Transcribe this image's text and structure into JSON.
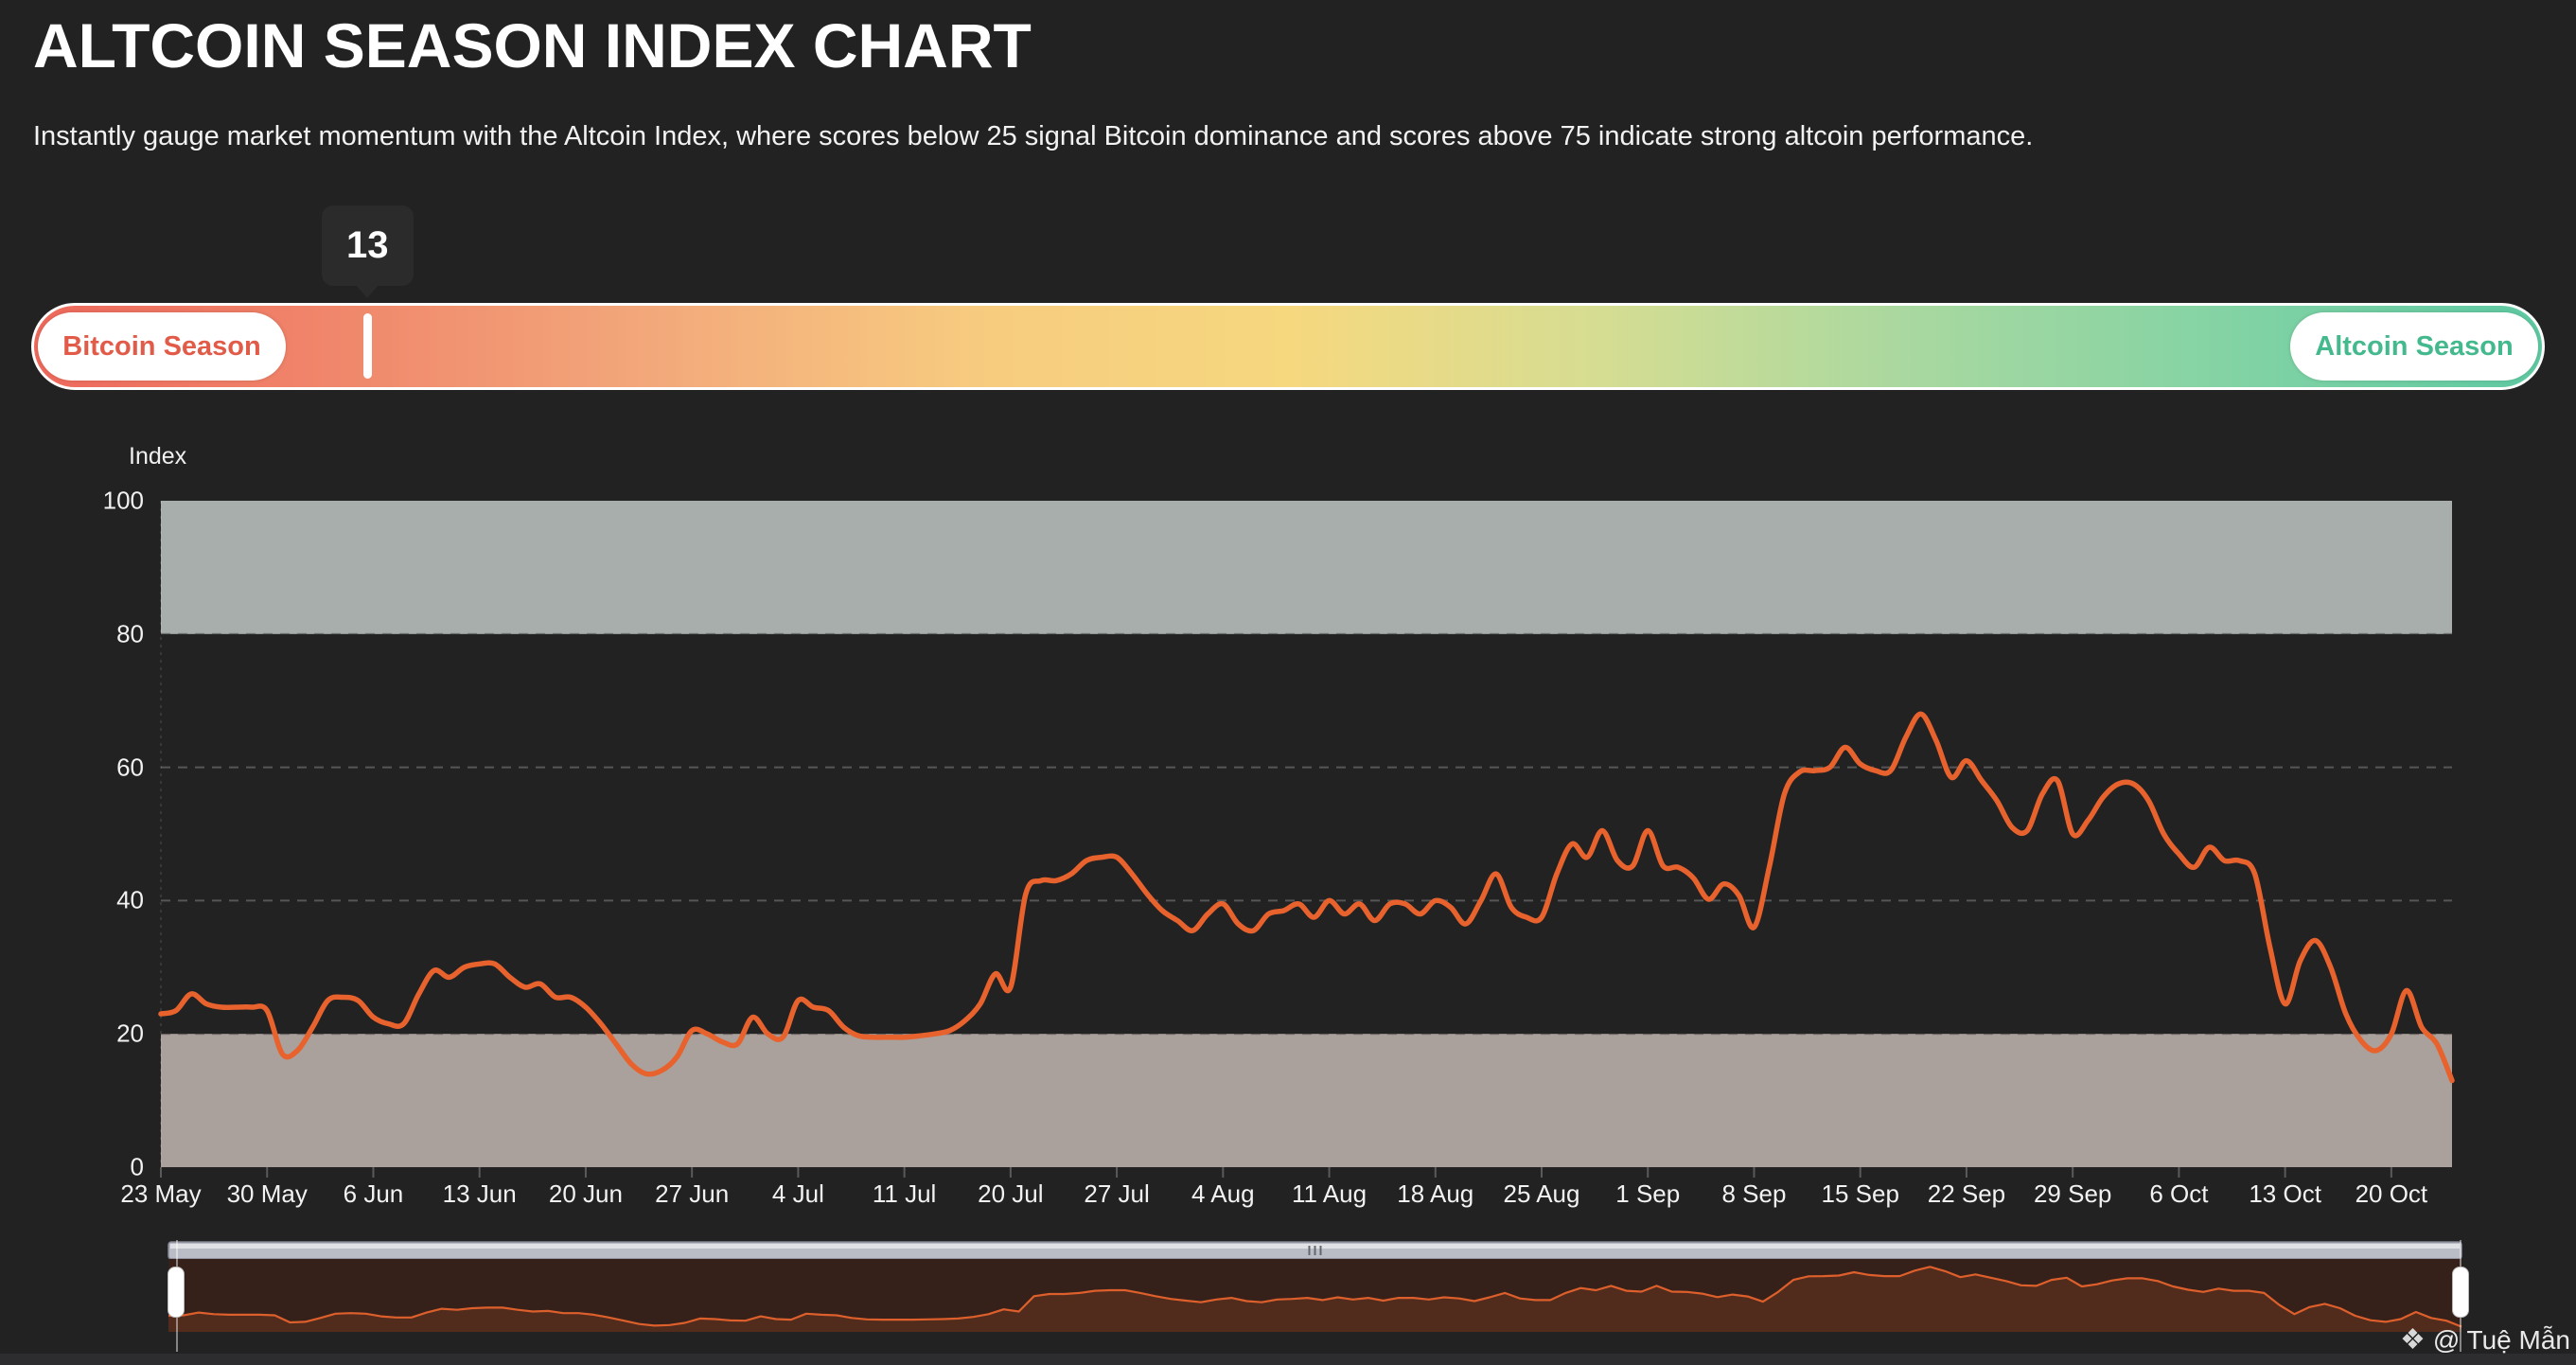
{
  "header": {
    "title": "ALTCOIN SEASON INDEX CHART",
    "subtitle": "Instantly gauge market momentum with the Altcoin Index, where scores below 25 signal Bitcoin dominance and scores above 75 indicate strong altcoin performance."
  },
  "season_gauge": {
    "current_value": "13",
    "marker_percent": 13,
    "left_label": "Bitcoin Season",
    "right_label": "Altcoin Season",
    "left_label_color": "#e25b49",
    "right_label_color": "#45b98e",
    "gradient_colors": [
      "#ee695c",
      "#f0886c",
      "#f3a97b",
      "#f7cb7f",
      "#f6d87f",
      "#d5dd92",
      "#a8d8a0",
      "#83d3a4",
      "#5ec9a2"
    ]
  },
  "chart_data": {
    "type": "line",
    "title": "Altcoin Season Index",
    "ylabel": "Index",
    "ylim": [
      0,
      100
    ],
    "y_tick_labels": [
      "100",
      "80",
      "60",
      "40",
      "20",
      "0"
    ],
    "y_tick_values": [
      100,
      80,
      60,
      40,
      20,
      0
    ],
    "dashed_gridlines": [
      60,
      40
    ],
    "bands": [
      {
        "name": "altcoin-season-zone",
        "from": 80,
        "to": 100,
        "color": "#a7aeab"
      },
      {
        "name": "bitcoin-season-zone",
        "from": 0,
        "to": 20,
        "color": "#aba19c"
      }
    ],
    "x_tick_labels": [
      "23 May",
      "30 May",
      "6 Jun",
      "13 Jun",
      "20 Jun",
      "27 Jun",
      "4 Jul",
      "11 Jul",
      "20 Jul",
      "27 Jul",
      "4 Aug",
      "11 Aug",
      "18 Aug",
      "25 Aug",
      "1 Sep",
      "8 Sep",
      "15 Sep",
      "22 Sep",
      "29 Sep",
      "6 Oct",
      "13 Oct",
      "20 Oct"
    ],
    "points_per_tick": 7,
    "series": [
      {
        "name": "Altcoin Season Index",
        "color": "#e8622d",
        "values": [
          23,
          23.5,
          26,
          24.5,
          24,
          24,
          24,
          23.5,
          17,
          17.5,
          21,
          25,
          25.5,
          25,
          22.5,
          21.5,
          21.5,
          26,
          29.5,
          28.5,
          30,
          30.5,
          30.5,
          28.5,
          27,
          27.5,
          25.5,
          25.5,
          24,
          21.5,
          18.5,
          15.5,
          14,
          14.5,
          16.5,
          20.5,
          20,
          18.8,
          18.5,
          22.5,
          20,
          19.5,
          25,
          24,
          23.5,
          21,
          19.7,
          19.5,
          19.5,
          19.5,
          19.7,
          20,
          20.5,
          22,
          24.5,
          29,
          27,
          41,
          43,
          43,
          44,
          46,
          46.5,
          46.5,
          44,
          41,
          38.5,
          37,
          35.5,
          38,
          39.5,
          36.5,
          35.5,
          38,
          38.5,
          39.5,
          37.5,
          40,
          38,
          39.5,
          37,
          39.5,
          39.5,
          38,
          40,
          39,
          36.5,
          40,
          44,
          39,
          37.5,
          37.5,
          44,
          48.5,
          46.5,
          50.5,
          46,
          45.2,
          50.5,
          45.2,
          45,
          43.4,
          40.2,
          42.5,
          40.8,
          36,
          45,
          56,
          59.3,
          59.5,
          60,
          63,
          60.5,
          59.5,
          59.5,
          64.5,
          68,
          64,
          58.5,
          61,
          58,
          55,
          51,
          50.5,
          56,
          58,
          50,
          52,
          55.5,
          57.5,
          57.5,
          55,
          50,
          47,
          45,
          48,
          46,
          46,
          44,
          33,
          24.5,
          31,
          34,
          30,
          23,
          19,
          17.5,
          20,
          26.5,
          21,
          18.5,
          13
        ]
      }
    ],
    "last_value": 13
  },
  "navigator": {
    "scrollbar_grip": "|||",
    "panel_color": "#35211a",
    "line_color": "#dd5f2b"
  },
  "watermark": {
    "icon": "diamond-logo",
    "icon_glyph": "❖",
    "text": "@ Tuệ Mẫn"
  }
}
